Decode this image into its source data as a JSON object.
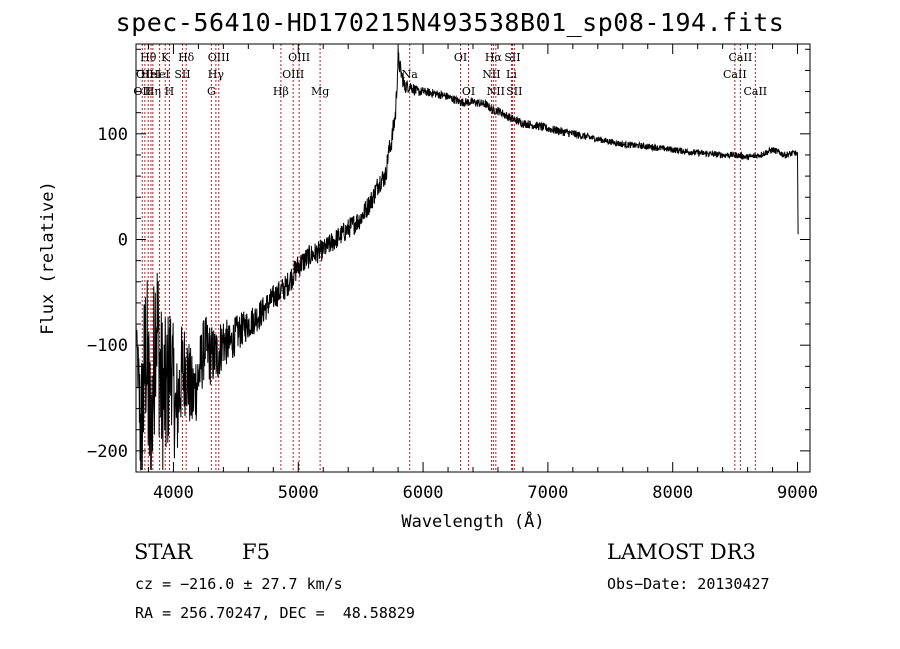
{
  "chart_data": {
    "type": "line",
    "title": "spec-56410-HD170215N493538B01_sp08-194.fits",
    "xlabel": "Wavelength (Å)",
    "ylabel": "Flux (relative)",
    "xlim": [
      3700,
      9100
    ],
    "ylim": [
      -220,
      185
    ],
    "xticks": [
      4000,
      5000,
      6000,
      7000,
      8000,
      9000
    ],
    "yticks": [
      -200,
      -100,
      0,
      100
    ],
    "series": [
      {
        "name": "flux",
        "x": [
          3700,
          3740,
          3780,
          3820,
          3860,
          3900,
          3940,
          3980,
          4020,
          4060,
          4100,
          4150,
          4200,
          4250,
          4300,
          4350,
          4400,
          4450,
          4500,
          4600,
          4700,
          4800,
          4900,
          5000,
          5100,
          5200,
          5300,
          5400,
          5500,
          5600,
          5650,
          5700,
          5720,
          5750,
          5780,
          5800,
          5820,
          5850,
          5900,
          5950,
          6000,
          6100,
          6200,
          6300,
          6400,
          6500,
          6563,
          6600,
          6700,
          6800,
          6900,
          7000,
          7200,
          7400,
          7600,
          7800,
          8000,
          8200,
          8400,
          8500,
          8600,
          8700,
          8800,
          8900,
          8980,
          9000,
          9005
        ],
        "y": [
          -80,
          -190,
          -100,
          -200,
          -60,
          -140,
          -150,
          -110,
          -170,
          -130,
          -120,
          -150,
          -130,
          -100,
          -110,
          -110,
          -95,
          -100,
          -90,
          -80,
          -70,
          -55,
          -45,
          -25,
          -15,
          -10,
          0,
          10,
          20,
          40,
          55,
          60,
          80,
          95,
          120,
          172,
          160,
          145,
          145,
          140,
          140,
          138,
          135,
          130,
          130,
          128,
          122,
          122,
          115,
          110,
          108,
          105,
          100,
          95,
          90,
          88,
          85,
          82,
          80,
          80,
          78,
          80,
          85,
          80,
          82,
          80,
          5
        ],
        "noise_amplitude": [
          0,
          80,
          90,
          95,
          80,
          80,
          75,
          60,
          55,
          50,
          45,
          40,
          35,
          30,
          30,
          28,
          25,
          20,
          18,
          15,
          14,
          12,
          12,
          12,
          11,
          10,
          10,
          10,
          10,
          10,
          10,
          10,
          10,
          10,
          10,
          10,
          8,
          7,
          6,
          5,
          4,
          4,
          4,
          4,
          4,
          4,
          4,
          4,
          4,
          4,
          4,
          4,
          4,
          3,
          3,
          3,
          3,
          3,
          3,
          3,
          3,
          3,
          3,
          3,
          3,
          3,
          0
        ]
      }
    ],
    "line_markers": [
      {
        "wavelength": 3750,
        "label": "OII",
        "row": 2
      },
      {
        "wavelength": 3771,
        "label": "OII",
        "row": 1
      },
      {
        "wavelength": 3798,
        "label": "Hθ",
        "row": 0
      },
      {
        "wavelength": 3820,
        "label": "HeI",
        "row": 1
      },
      {
        "wavelength": 3835,
        "label": "Hη",
        "row": 2
      },
      {
        "wavelength": 3889,
        "label": "HeI",
        "row": 1
      },
      {
        "wavelength": 3934,
        "label": "K",
        "row": 0
      },
      {
        "wavelength": 3968,
        "label": "H",
        "row": 2
      },
      {
        "wavelength": 4072,
        "label": "SII",
        "row": 1
      },
      {
        "wavelength": 4102,
        "label": "Hδ",
        "row": 0
      },
      {
        "wavelength": 4304,
        "label": "G",
        "row": 2
      },
      {
        "wavelength": 4340,
        "label": "Hγ",
        "row": 1
      },
      {
        "wavelength": 4363,
        "label": "OIII",
        "row": 0
      },
      {
        "wavelength": 4861,
        "label": "Hβ",
        "row": 2
      },
      {
        "wavelength": 4959,
        "label": "OIII",
        "row": 1
      },
      {
        "wavelength": 5007,
        "label": "OIII",
        "row": 0
      },
      {
        "wavelength": 5175,
        "label": "Mg",
        "row": 2
      },
      {
        "wavelength": 5893,
        "label": "Na",
        "row": 1
      },
      {
        "wavelength": 6300,
        "label": "OI",
        "row": 0
      },
      {
        "wavelength": 6364,
        "label": "OI",
        "row": 2
      },
      {
        "wavelength": 6548,
        "label": "NII",
        "row": 1
      },
      {
        "wavelength": 6563,
        "label": "Hα",
        "row": 0
      },
      {
        "wavelength": 6583,
        "label": "NII",
        "row": 2
      },
      {
        "wavelength": 6708,
        "label": "Li",
        "row": 1
      },
      {
        "wavelength": 6716,
        "label": "SII",
        "row": 0
      },
      {
        "wavelength": 6731,
        "label": "SII",
        "row": 2
      },
      {
        "wavelength": 8498,
        "label": "CaII",
        "row": 1
      },
      {
        "wavelength": 8542,
        "label": "CaII",
        "row": 0
      },
      {
        "wavelength": 8662,
        "label": "CaII",
        "row": 2
      }
    ]
  },
  "info": {
    "object_class": "STAR",
    "subclass": "F5",
    "survey": "LAMOST DR3",
    "cz_line": "cz = −216.0 ± 27.7 km/s",
    "obs_date": "Obs−Date: 20130427",
    "coords_line": "RA = 256.70247, DEC =  48.58829"
  },
  "colors": {
    "line_marker": "#b22222",
    "spectrum": "#000000"
  }
}
